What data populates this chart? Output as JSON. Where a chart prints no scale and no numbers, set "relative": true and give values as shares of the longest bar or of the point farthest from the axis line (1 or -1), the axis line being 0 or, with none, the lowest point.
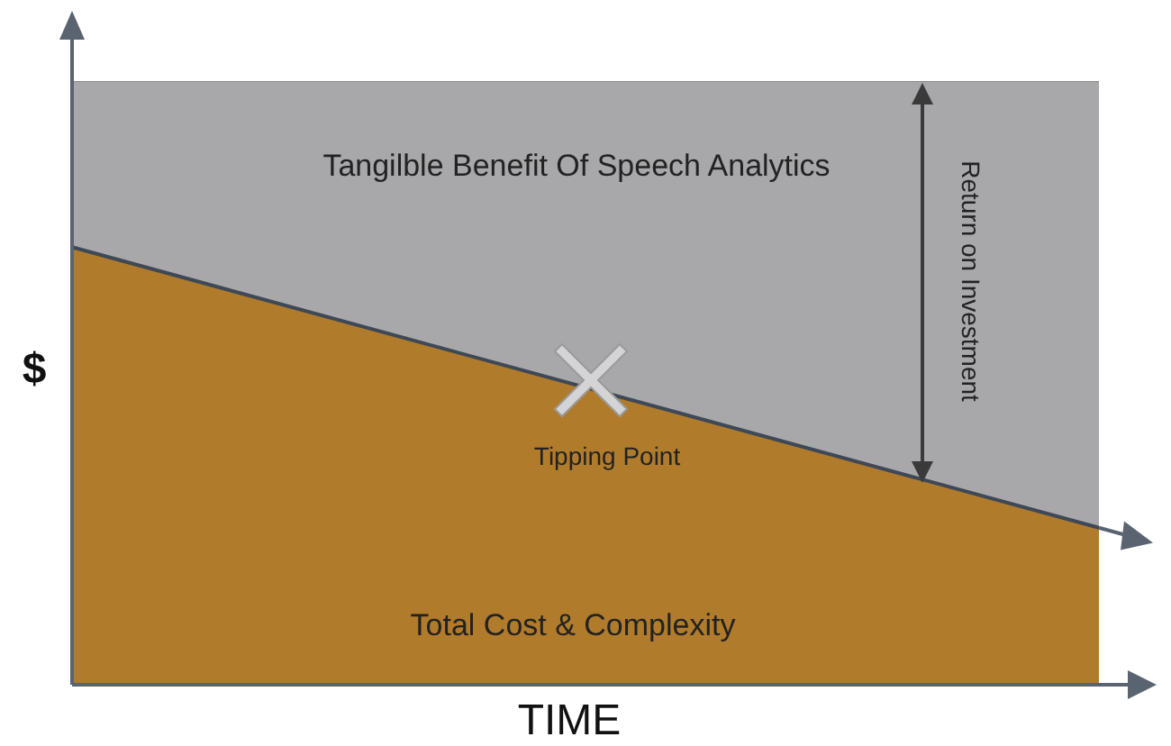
{
  "chart_data": {
    "type": "area",
    "relative": true,
    "stacked": true,
    "xlabel": "TIME",
    "ylabel": "$",
    "categories": [
      null,
      null
    ],
    "series": [
      {
        "name": "Total Cost & Complexity",
        "color": "#b17b2c",
        "values": [
          0.725,
          0.26
        ]
      },
      {
        "name": "Tangilble Benefit Of Speech Analytics",
        "color": "#a8a8aa",
        "values": [
          0.275,
          0.74
        ]
      }
    ],
    "annotations": [
      "Tipping Point",
      "Return on Investment"
    ]
  }
}
